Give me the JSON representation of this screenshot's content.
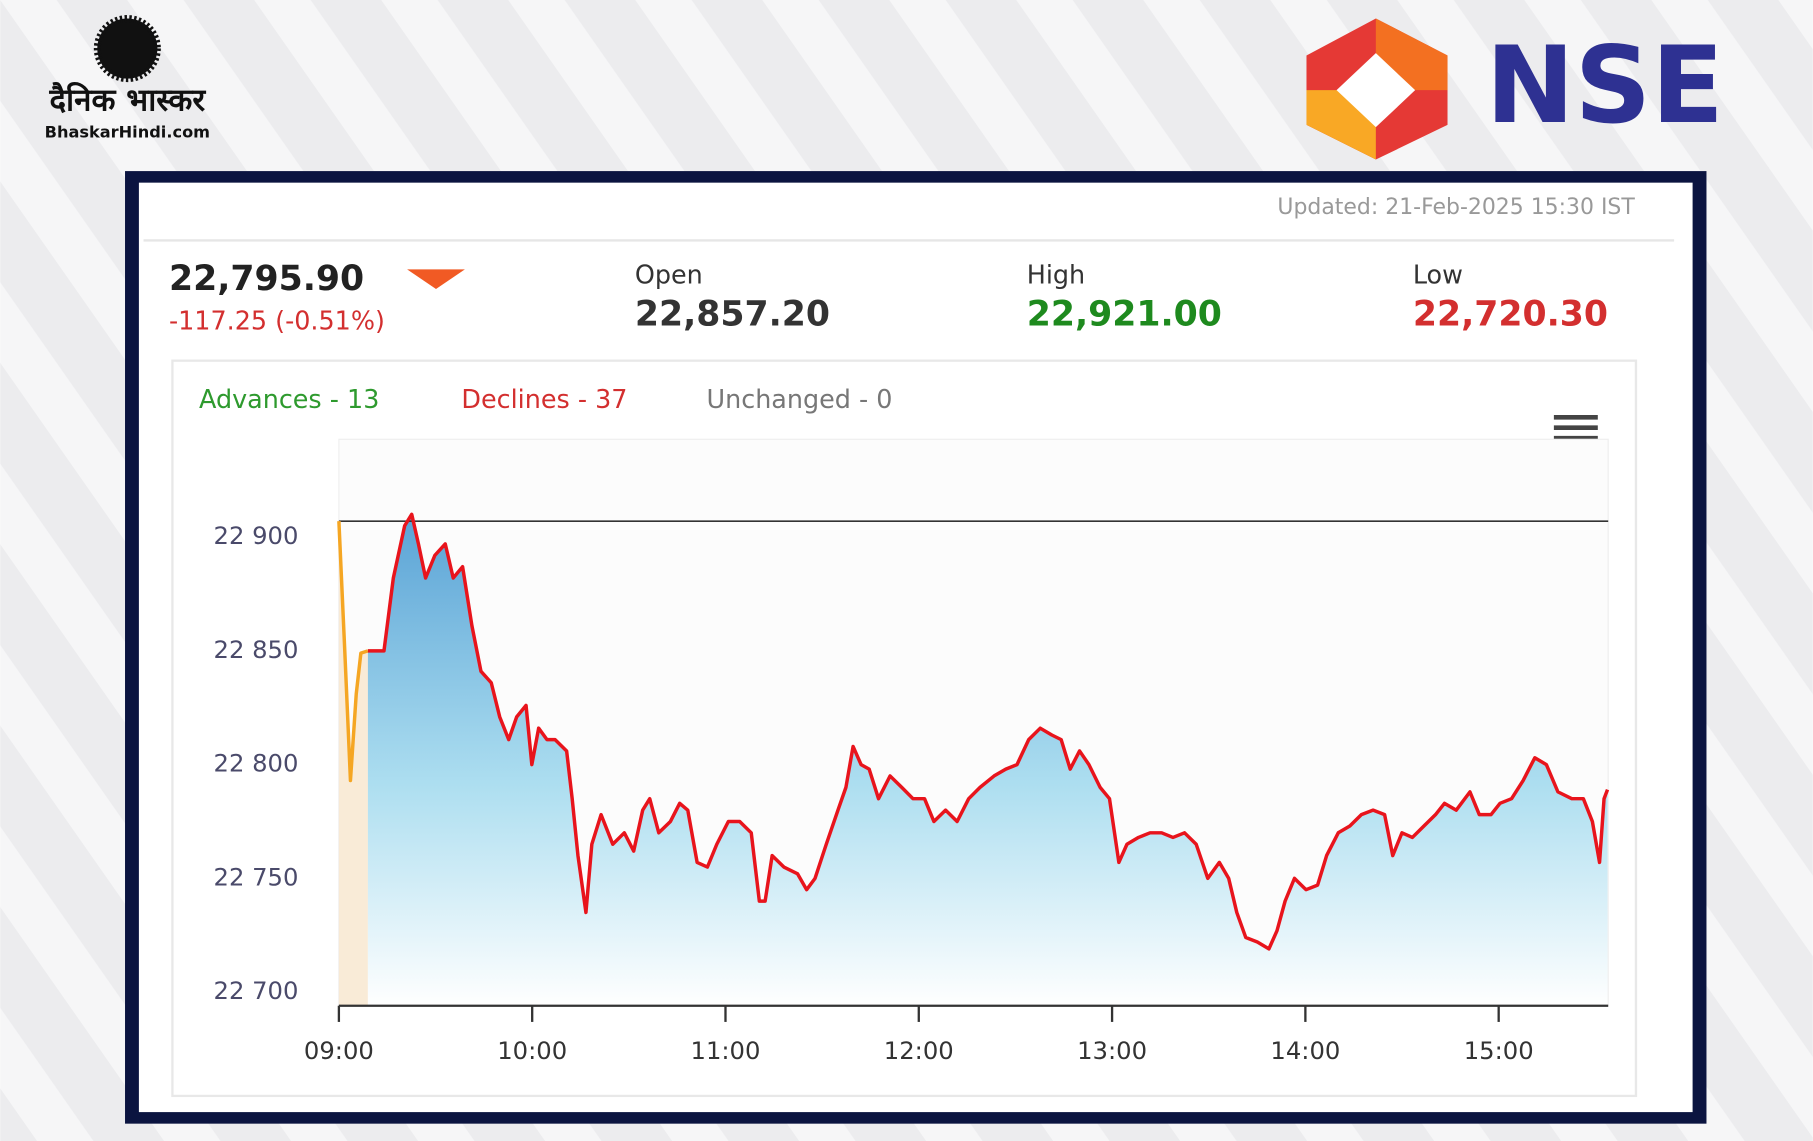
{
  "branding": {
    "brand_name": "दैनिक भास्कर",
    "brand_site": "BhaskarHindi.com",
    "exchange": "NSE"
  },
  "updated": "Updated: 21-Feb-2025 15:30 IST",
  "quote": {
    "last": "22,795.90",
    "change": "-117.25 (-0.51%)",
    "open_label": "Open",
    "open": "22,857.20",
    "high_label": "High",
    "high": "22,921.00",
    "low_label": "Low",
    "low": "22,720.30"
  },
  "breadth": {
    "advances": "Advances - 13",
    "declines": "Declines - 37",
    "unchanged": "Unchanged - 0"
  },
  "chart_data": {
    "type": "line",
    "xlim": [
      540,
      934
    ],
    "xticks": [
      {
        "value": 540,
        "label": "09:00"
      },
      {
        "value": 600,
        "label": "10:00"
      },
      {
        "value": 660,
        "label": "11:00"
      },
      {
        "value": 720,
        "label": "12:00"
      },
      {
        "value": 780,
        "label": "13:00"
      },
      {
        "value": 840,
        "label": "14:00"
      },
      {
        "value": 900,
        "label": "15:00"
      }
    ],
    "ylim": [
      22694,
      22943
    ],
    "yticks": [
      {
        "value": 22700,
        "label": "22 700"
      },
      {
        "value": 22750,
        "label": "22 750"
      },
      {
        "value": 22800,
        "label": "22 800"
      },
      {
        "value": 22850,
        "label": "22 850"
      },
      {
        "value": 22900,
        "label": "22 900"
      }
    ],
    "reference_line": 22907,
    "series": [
      {
        "color": "#f5a623",
        "area_color": "#f8e7d0",
        "x": [
          540,
          541.8,
          543.6,
          545.4,
          546.8,
          549
        ],
        "values": [
          22907,
          22851,
          22793,
          22831,
          22849,
          22850
        ]
      },
      {
        "color": "#e8141c",
        "area_color": "#3d93cf",
        "x": [
          549,
          554,
          556.9,
          560.4,
          562.6,
          564.7,
          566.9,
          569.8,
          573,
          575.5,
          578.4,
          581.3,
          584.1,
          587.3,
          589.9,
          592.7,
          595.2,
          598.1,
          599.9,
          602,
          604.6,
          607.1,
          610.7,
          612.4,
          614.2,
          616.7,
          618.5,
          621.4,
          625,
          628.6,
          631.5,
          634.3,
          636.5,
          639.3,
          642.9,
          645.8,
          648.3,
          651.2,
          654.4,
          657.3,
          660.9,
          664.4,
          668,
          670.5,
          672.3,
          674.5,
          678.1,
          682.4,
          685.2,
          687.8,
          691.3,
          694.9,
          697.4,
          699.6,
          702.1,
          704.6,
          707.5,
          711.1,
          714.7,
          718.2,
          721.8,
          724.7,
          728.3,
          731.9,
          735.5,
          739,
          743.4,
          747,
          750.5,
          754.1,
          757.7,
          761.3,
          764.2,
          767,
          769.9,
          772.8,
          776.3,
          779.2,
          782.1,
          784.6,
          788.2,
          791.8,
          795.4,
          798.9,
          802.5,
          806.1,
          809.7,
          813.3,
          816.2,
          818.7,
          821.5,
          825.1,
          828.7,
          831.2,
          833.7,
          836.6,
          840.2,
          843.8,
          846.6,
          850.2,
          853.8,
          857.4,
          861,
          864.6,
          867.1,
          870,
          873.2,
          876.8,
          880.4,
          883.2,
          886.8,
          891.1,
          894,
          897.6,
          900.4,
          904,
          907.6,
          911.2,
          914.8,
          918.4,
          922.7,
          926.3,
          929.1,
          931.3,
          932.7,
          933.8
        ],
        "values": [
          22850,
          22850,
          22882,
          22905,
          22910,
          22897,
          22882,
          22892,
          22897,
          22882,
          22887,
          22861,
          22841,
          22836,
          22821,
          22811,
          22821,
          22826,
          22800,
          22816,
          22811,
          22811,
          22806,
          22785,
          22760,
          22735,
          22765,
          22778,
          22765,
          22770,
          22762,
          22780,
          22785,
          22770,
          22775,
          22783,
          22780,
          22757,
          22755,
          22765,
          22775,
          22775,
          22770,
          22740,
          22740,
          22760,
          22755,
          22752,
          22745,
          22750,
          22765,
          22780,
          22790,
          22808,
          22800,
          22798,
          22785,
          22795,
          22790,
          22785,
          22785,
          22775,
          22780,
          22775,
          22785,
          22790,
          22795,
          22798,
          22800,
          22811,
          22816,
          22813,
          22811,
          22798,
          22806,
          22800,
          22790,
          22785,
          22757,
          22765,
          22768,
          22770,
          22770,
          22768,
          22770,
          22765,
          22750,
          22757,
          22750,
          22735,
          22724,
          22722,
          22719,
          22727,
          22740,
          22750,
          22745,
          22747,
          22760,
          22770,
          22773,
          22778,
          22780,
          22778,
          22760,
          22770,
          22768,
          22773,
          22778,
          22783,
          22780,
          22788,
          22778,
          22778,
          22783,
          22785,
          22793,
          22803,
          22800,
          22788,
          22785,
          22785,
          22775,
          22757,
          22785,
          22789
        ]
      }
    ]
  }
}
